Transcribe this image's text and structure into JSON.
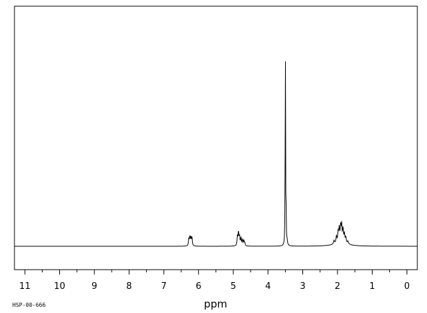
{
  "chart_data": {
    "type": "line",
    "title": "",
    "xlabel": "ppm",
    "ylabel": "",
    "xlim": [
      11.3,
      -0.3
    ],
    "x_reversed": true,
    "ylim": [
      0,
      100
    ],
    "grid": false,
    "major_ticks": [
      11,
      10,
      9,
      8,
      7,
      6,
      5,
      4,
      3,
      2,
      1,
      0
    ],
    "tick_labels": [
      "11",
      "10",
      "9",
      "8",
      "7",
      "6",
      "5",
      "4",
      "3",
      "2",
      "1",
      "0"
    ],
    "peaks": [
      {
        "ppm": 6.28,
        "height": 3.4,
        "width": 0.012
      },
      {
        "ppm": 6.25,
        "height": 4.0,
        "width": 0.012
      },
      {
        "ppm": 6.22,
        "height": 3.6,
        "width": 0.012
      },
      {
        "ppm": 6.19,
        "height": 4.0,
        "width": 0.012
      },
      {
        "ppm": 4.88,
        "height": 4.6,
        "width": 0.012
      },
      {
        "ppm": 4.85,
        "height": 6.2,
        "width": 0.012
      },
      {
        "ppm": 4.82,
        "height": 4.4,
        "width": 0.012
      },
      {
        "ppm": 4.78,
        "height": 3.6,
        "width": 0.012
      },
      {
        "ppm": 4.74,
        "height": 2.8,
        "width": 0.012
      },
      {
        "ppm": 4.7,
        "height": 2.6,
        "width": 0.012
      },
      {
        "ppm": 4.67,
        "height": 1.6,
        "width": 0.012
      },
      {
        "ppm": 3.5,
        "height": 100,
        "width": 0.006
      },
      {
        "ppm": 3.48,
        "height": 14.5,
        "width": 0.006
      },
      {
        "ppm": 3.45,
        "height": 2.0,
        "width": 0.012
      },
      {
        "ppm": 2.1,
        "height": 1.5,
        "width": 0.015
      },
      {
        "ppm": 2.03,
        "height": 3.0,
        "width": 0.013
      },
      {
        "ppm": 1.98,
        "height": 4.4,
        "width": 0.013
      },
      {
        "ppm": 1.95,
        "height": 5.6,
        "width": 0.013
      },
      {
        "ppm": 1.91,
        "height": 6.3,
        "width": 0.013
      },
      {
        "ppm": 1.88,
        "height": 7.0,
        "width": 0.013
      },
      {
        "ppm": 1.84,
        "height": 5.4,
        "width": 0.013
      },
      {
        "ppm": 1.8,
        "height": 3.8,
        "width": 0.013
      },
      {
        "ppm": 1.76,
        "height": 2.6,
        "width": 0.013
      },
      {
        "ppm": 1.7,
        "height": 1.2,
        "width": 0.015
      }
    ],
    "humps": [
      {
        "ppm": 1.9,
        "height": 2.6,
        "width": 0.16
      }
    ]
  },
  "footer": {
    "spectrum_code": "HSP-00-666"
  }
}
